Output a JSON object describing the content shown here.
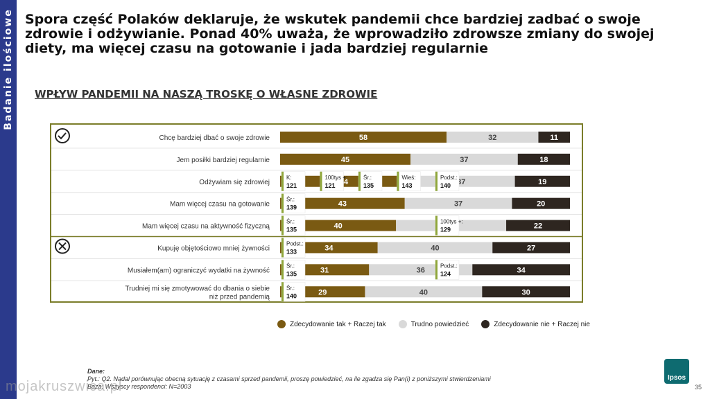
{
  "sidebar": {
    "label": "Badanie ilościowe"
  },
  "headline": "Spora część Polaków deklaruje, że wskutek pandemii chce bardziej zadbać o swoje zdrowie i odżywianie. Ponad 40% uważa, że wprowadziło zdrowsze zmiany do swojej diety, ma więcej czasu na gotowanie i jada bardziej regularnie",
  "subtitle": "WPŁYW PANDEMII NA NASZĄ TROSKĘ O WŁASNE ZDROWIE",
  "colors": {
    "yes": "#7a5a12",
    "neutral": "#d9d9d9",
    "no": "#2e2620",
    "frame": "#7b7d2a",
    "marker": "#8fa63a"
  },
  "chart_data": {
    "type": "bar",
    "stacked": true,
    "orientation": "horizontal",
    "categories": [
      "Chcę bardziej dbać o swoje zdrowie",
      "Jem posiłki bardziej regularnie",
      "Odżywiam się zdrowiej",
      "Mam więcej czasu na gotowanie",
      "Mam więcej czasu na aktywność fizyczną",
      "Kupuję objętościowo mniej żywności",
      "Musiałem(am) ograniczyć wydatki na żywność",
      "Trudniej mi się zmotywować do dbania o siebie niż przed pandemią"
    ],
    "series": [
      {
        "name": "Zdecydowanie tak + Raczej tak",
        "values": [
          58,
          45,
          44,
          43,
          40,
          34,
          31,
          29
        ]
      },
      {
        "name": "Trudno powiedzieć",
        "values": [
          32,
          37,
          37,
          37,
          38,
          40,
          36,
          40
        ]
      },
      {
        "name": "Zdecydowanie nie + Raczej nie",
        "values": [
          11,
          18,
          19,
          20,
          22,
          27,
          34,
          30
        ]
      }
    ],
    "groups": [
      {
        "icon": "check-circle-icon",
        "rows": [
          0,
          1,
          2,
          3,
          4
        ]
      },
      {
        "icon": "x-circle-icon",
        "rows": [
          5,
          6,
          7
        ]
      }
    ],
    "markers": [
      {
        "row": 2,
        "label": "K:",
        "value": 121
      },
      {
        "row": 2,
        "label": "100tys +:",
        "value": 121
      },
      {
        "row": 2,
        "label": "Śr.:",
        "value": 135
      },
      {
        "row": 2,
        "label": "Wieś:",
        "value": 143
      },
      {
        "row": 2,
        "label": "Podst.:",
        "value": 140
      },
      {
        "row": 3,
        "label": "Śr.:",
        "value": 139
      },
      {
        "row": 4,
        "label": "Śr.:",
        "value": 135
      },
      {
        "row": 4,
        "label": "100tys +:",
        "value": 129
      },
      {
        "row": 5,
        "label": "Podst.:",
        "value": 133
      },
      {
        "row": 6,
        "label": "Śr.:",
        "value": 135
      },
      {
        "row": 6,
        "label": "Podst.:",
        "value": 124
      },
      {
        "row": 7,
        "label": "Śr.:",
        "value": 140
      }
    ],
    "legend_position": "bottom"
  },
  "footnote": {
    "label": "Dane:",
    "question": "Pyt.: Q2. Nadal porównując obecną sytuację z czasami sprzed pandemii, proszę powiedzieć, na ile zgadza się Pan(i) z poniższymi stwierdzeniami",
    "base": "Baza: Wszyscy respondenci: N=2003"
  },
  "page_number": "35",
  "logo_text": "Ipsos",
  "watermark": "mojakruszwica.pl"
}
